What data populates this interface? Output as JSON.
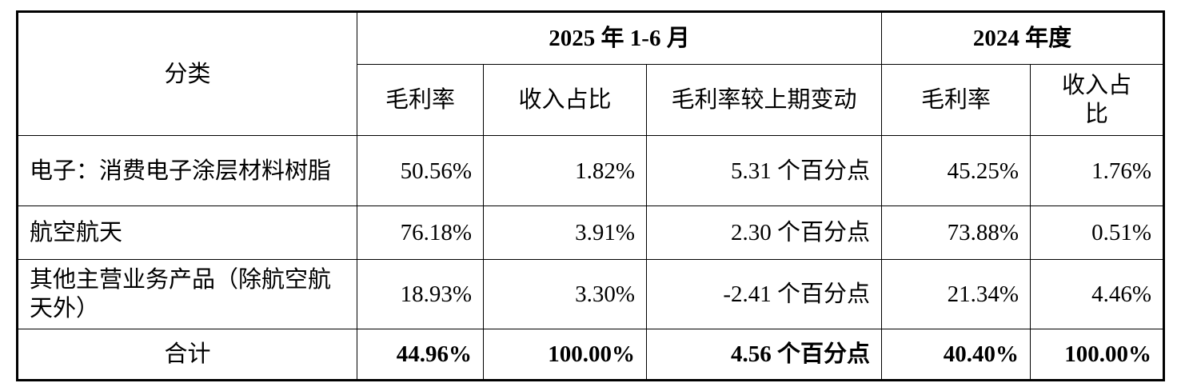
{
  "table": {
    "header": {
      "category": "分类",
      "groups": [
        "2025 年 1-6 月",
        "2024 年度"
      ],
      "columns": [
        "毛利率",
        "收入占比",
        "毛利率较上期变动",
        "毛利率",
        "收入占比"
      ]
    },
    "rows": [
      [
        "电子：消费电子涂层材料树脂",
        "50.56%",
        "1.82%",
        "5.31 个百分点",
        "45.25%",
        "1.76%"
      ],
      [
        "航空航天",
        "76.18%",
        "3.91%",
        "2.30 个百分点",
        "73.88%",
        "0.51%"
      ],
      [
        "其他主营业务产品（除航空航天外）",
        "18.93%",
        "3.30%",
        "-2.41 个百分点",
        "21.34%",
        "4.46%"
      ]
    ],
    "total": [
      "合计",
      "44.96%",
      "100.00%",
      "4.56 个百分点",
      "40.40%",
      "100.00%"
    ]
  }
}
